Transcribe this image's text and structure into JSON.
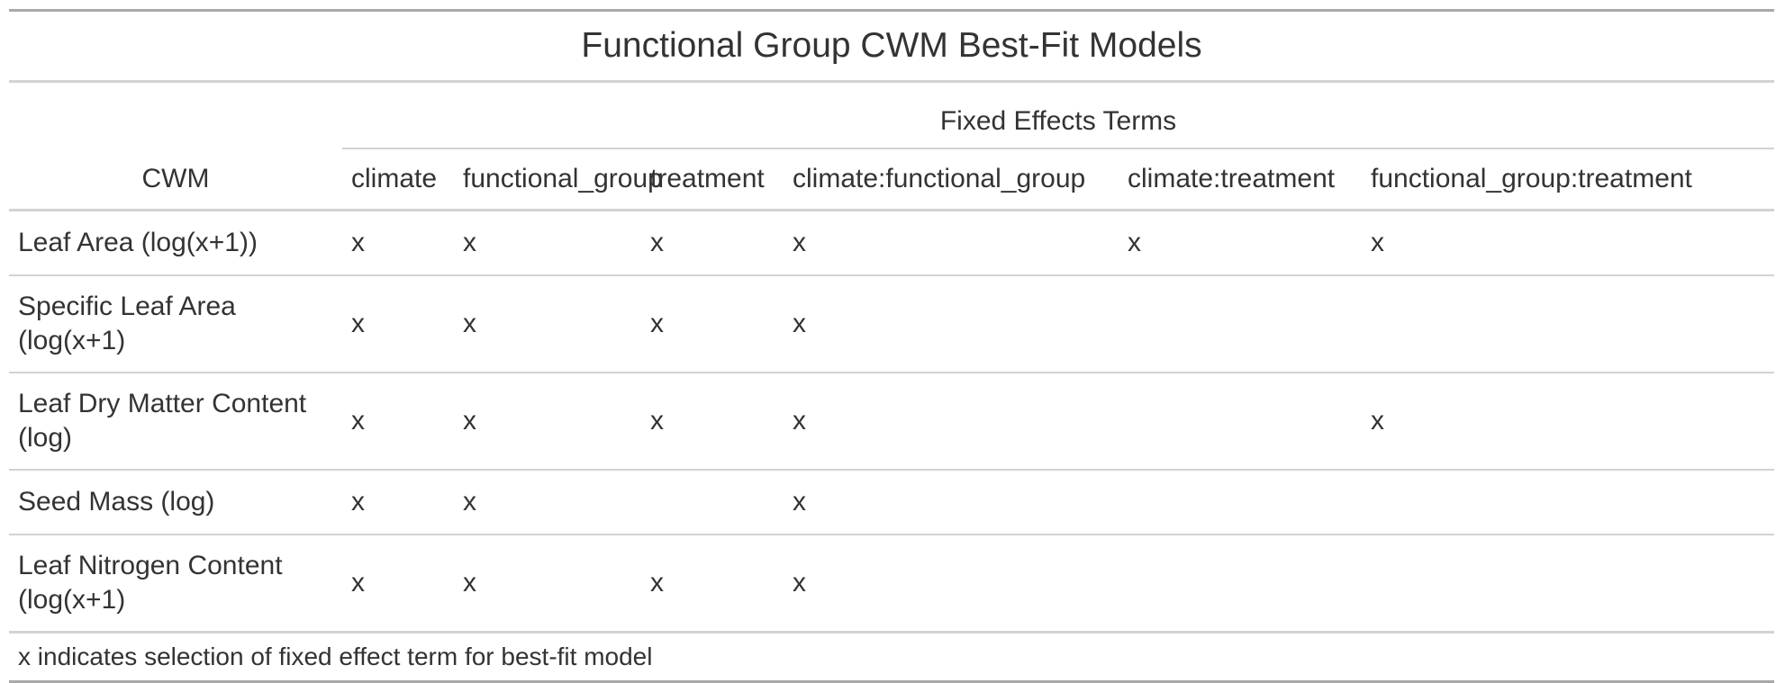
{
  "title": "Functional Group CWM Best-Fit Models",
  "spanner": "Fixed Effects Terms",
  "stub_header": "CWM",
  "columns": [
    "climate",
    "functional_group",
    "treatment",
    "climate:functional_group",
    "climate:treatment",
    "functional_group:treatment"
  ],
  "rows": [
    {
      "label": "Leaf Area (log(x+1))",
      "cells": [
        "x",
        "x",
        "x",
        "x",
        "x",
        "x"
      ]
    },
    {
      "label": "Specific Leaf Area (log(x+1)",
      "cells": [
        "x",
        "x",
        "x",
        "x",
        "",
        ""
      ]
    },
    {
      "label": "Leaf Dry Matter Content (log)",
      "cells": [
        "x",
        "x",
        "x",
        "x",
        "",
        "x"
      ]
    },
    {
      "label": "Seed Mass (log)",
      "cells": [
        "x",
        "x",
        "",
        "x",
        "",
        ""
      ]
    },
    {
      "label": "Leaf Nitrogen Content (log(x+1)",
      "cells": [
        "x",
        "x",
        "x",
        "x",
        "",
        ""
      ]
    }
  ],
  "footnote": "x indicates selection of fixed effect term for best-fit model"
}
